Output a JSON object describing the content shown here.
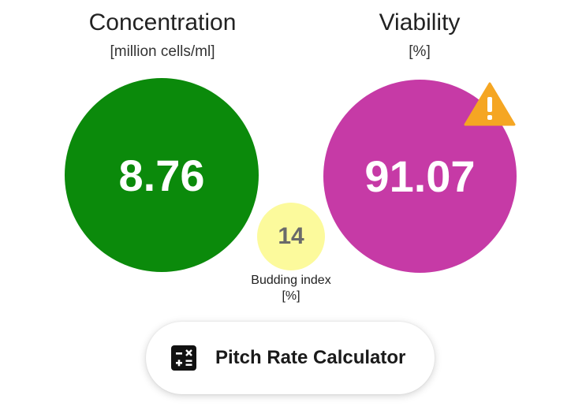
{
  "concentration": {
    "title": "Concentration",
    "unit": "[million cells/ml]",
    "value": "8.76",
    "color": "#0b8a0b"
  },
  "viability": {
    "title": "Viability",
    "unit": "[%]",
    "value": "91.07",
    "color": "#c63aa6",
    "warning_icon": "warning-triangle-icon",
    "warning_color": "#f5a623"
  },
  "budding": {
    "value": "14",
    "label": "Budding index",
    "unit": "[%]",
    "color": "#fcfa9c"
  },
  "calculator_button": {
    "label": "Pitch Rate Calculator",
    "icon": "calculator-icon"
  }
}
